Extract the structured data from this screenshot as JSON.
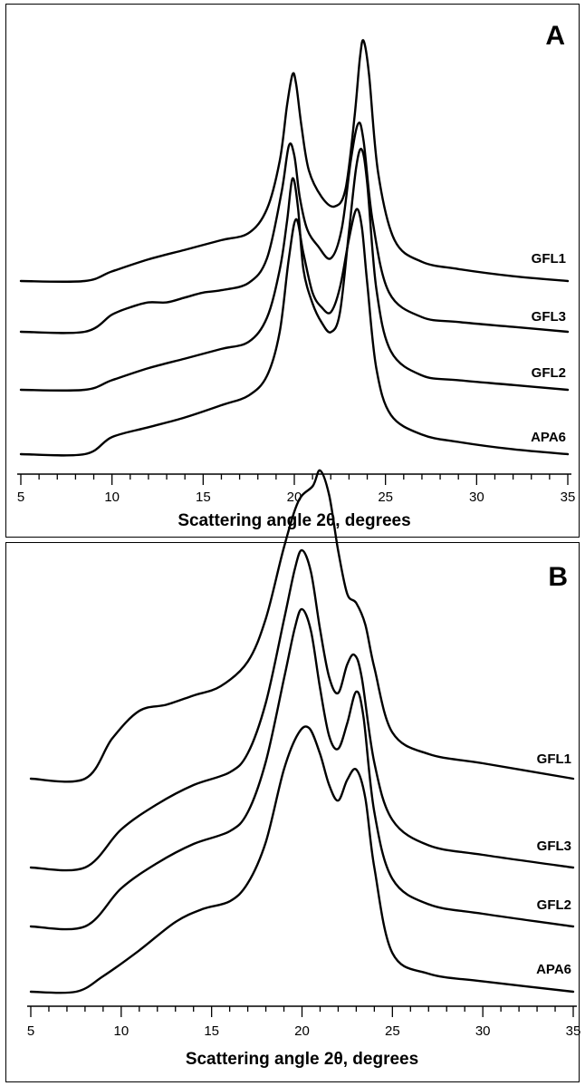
{
  "chart_data": [
    {
      "type": "line",
      "panel_label": "A",
      "xlabel": "Scattering angle 2θ, degrees",
      "xlim": [
        5,
        35
      ],
      "xticks": [
        5,
        10,
        15,
        20,
        25,
        30,
        35
      ],
      "ticklabels": [
        "5",
        "10",
        "15",
        "20",
        "25",
        "30",
        "35"
      ],
      "grid": false,
      "series": [
        {
          "name": "GFL1",
          "x": [
            5,
            8.5,
            10,
            12,
            14,
            16,
            17.5,
            18.5,
            19.2,
            19.6,
            19.9,
            20.1,
            20.4,
            20.8,
            21.5,
            22.2,
            22.8,
            23.3,
            23.6,
            23.8,
            24.1,
            24.6,
            25.5,
            27,
            29,
            32,
            35
          ],
          "y": [
            0,
            0,
            0.04,
            0.09,
            0.13,
            0.17,
            0.2,
            0.3,
            0.5,
            0.73,
            0.86,
            0.82,
            0.64,
            0.46,
            0.35,
            0.31,
            0.38,
            0.68,
            0.93,
            1.0,
            0.86,
            0.45,
            0.17,
            0.08,
            0.05,
            0.02,
            0
          ]
        },
        {
          "name": "GFL3",
          "x": [
            5,
            8.5,
            10,
            11,
            12,
            13,
            14,
            15,
            16,
            17.5,
            18.5,
            19.3,
            19.7,
            20.0,
            20.3,
            20.7,
            21.3,
            22.0,
            22.6,
            23.1,
            23.5,
            23.8,
            24.3,
            25.2,
            27,
            29,
            32,
            35
          ],
          "y": [
            0,
            0,
            0.07,
            0.1,
            0.12,
            0.12,
            0.14,
            0.16,
            0.17,
            0.2,
            0.3,
            0.57,
            0.76,
            0.72,
            0.55,
            0.42,
            0.35,
            0.3,
            0.42,
            0.7,
            0.85,
            0.78,
            0.45,
            0.16,
            0.06,
            0.04,
            0.02,
            0
          ]
        },
        {
          "name": "GFL2",
          "x": [
            5,
            8.5,
            10,
            12,
            14,
            16,
            17.5,
            18.5,
            19.2,
            19.6,
            19.9,
            20.2,
            20.5,
            21.0,
            21.5,
            22.0,
            22.5,
            23.0,
            23.4,
            23.7,
            24.0,
            24.5,
            25.3,
            27,
            29,
            32,
            35
          ],
          "y": [
            0,
            0,
            0.04,
            0.09,
            0.13,
            0.17,
            0.2,
            0.3,
            0.5,
            0.7,
            0.88,
            0.76,
            0.5,
            0.36,
            0.28,
            0.24,
            0.32,
            0.66,
            0.93,
            1.0,
            0.86,
            0.42,
            0.16,
            0.06,
            0.04,
            0.02,
            0
          ]
        },
        {
          "name": "APA6",
          "x": [
            5,
            8.5,
            10,
            12,
            14,
            16,
            17.5,
            18.5,
            19.2,
            19.7,
            20.1,
            20.5,
            21.0,
            21.5,
            22.0,
            22.5,
            23.0,
            23.4,
            23.7,
            24.0,
            24.5,
            25.3,
            27,
            29,
            32,
            35
          ],
          "y": [
            0,
            0,
            0.07,
            0.11,
            0.15,
            0.2,
            0.24,
            0.32,
            0.5,
            0.8,
            0.96,
            0.82,
            0.66,
            0.6,
            0.58,
            0.68,
            0.88,
            1.0,
            0.93,
            0.7,
            0.35,
            0.16,
            0.08,
            0.05,
            0.02,
            0
          ]
        }
      ]
    },
    {
      "type": "line",
      "panel_label": "B",
      "xlabel": "Scattering angle 2θ, degrees",
      "xlim": [
        5,
        35
      ],
      "xticks": [
        5,
        10,
        15,
        20,
        25,
        30,
        35
      ],
      "ticklabels": [
        "5",
        "10",
        "15",
        "20",
        "25",
        "30",
        "35"
      ],
      "grid": false,
      "series": [
        {
          "name": "GFL1",
          "x": [
            5,
            8.0,
            9.5,
            11.0,
            12.5,
            14,
            15.5,
            17,
            18,
            19,
            19.8,
            20.6,
            21.0,
            21.5,
            22.0,
            22.5,
            23.0,
            23.5,
            24.0,
            25,
            27,
            30,
            35
          ],
          "y": [
            0,
            0,
            0.13,
            0.22,
            0.24,
            0.27,
            0.3,
            0.38,
            0.52,
            0.75,
            0.9,
            0.95,
            1.0,
            0.92,
            0.74,
            0.6,
            0.57,
            0.5,
            0.36,
            0.15,
            0.08,
            0.05,
            0
          ]
        },
        {
          "name": "GFL3",
          "x": [
            5,
            8.0,
            10,
            12,
            14,
            16,
            17,
            18,
            19,
            19.6,
            20.0,
            20.5,
            21.0,
            21.5,
            22.0,
            22.5,
            22.9,
            23.3,
            24.0,
            25,
            27,
            30,
            35
          ],
          "y": [
            0,
            0,
            0.12,
            0.2,
            0.26,
            0.3,
            0.36,
            0.52,
            0.78,
            0.94,
            1.0,
            0.93,
            0.75,
            0.6,
            0.55,
            0.64,
            0.67,
            0.6,
            0.33,
            0.15,
            0.07,
            0.04,
            0
          ]
        },
        {
          "name": "GFL2",
          "x": [
            5,
            8.0,
            10,
            12,
            14,
            16,
            17,
            18,
            19,
            19.6,
            20.0,
            20.5,
            21.0,
            21.5,
            22.0,
            22.5,
            23.0,
            23.4,
            24.0,
            25,
            27,
            30,
            35
          ],
          "y": [
            0,
            0,
            0.12,
            0.2,
            0.26,
            0.3,
            0.36,
            0.52,
            0.78,
            0.94,
            1.0,
            0.93,
            0.75,
            0.6,
            0.56,
            0.64,
            0.74,
            0.66,
            0.36,
            0.15,
            0.07,
            0.04,
            0
          ]
        },
        {
          "name": "APA6",
          "x": [
            5,
            7.5,
            9,
            11,
            13,
            14.5,
            16,
            17,
            18,
            19,
            19.8,
            20.4,
            21.0,
            21.5,
            22.0,
            22.5,
            23.0,
            23.5,
            24.0,
            25,
            27,
            30,
            35
          ],
          "y": [
            0,
            0,
            0.06,
            0.16,
            0.27,
            0.32,
            0.35,
            0.42,
            0.58,
            0.86,
            1.0,
            1.02,
            0.92,
            0.8,
            0.74,
            0.82,
            0.86,
            0.75,
            0.48,
            0.15,
            0.07,
            0.04,
            0
          ]
        }
      ]
    }
  ]
}
